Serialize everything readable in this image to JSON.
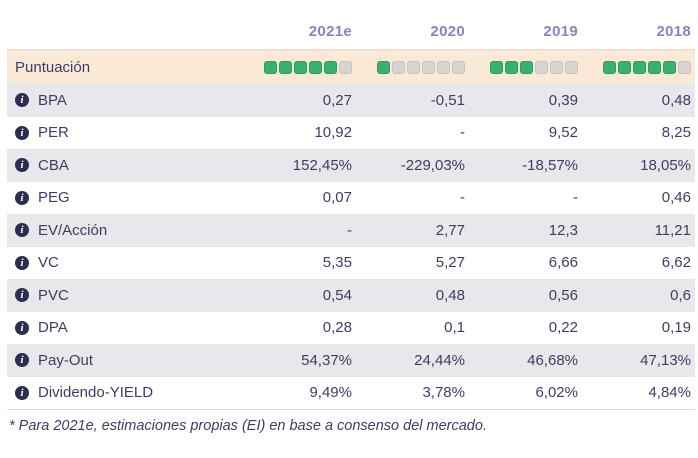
{
  "colors": {
    "year_header_text": "#8186c7",
    "body_text": "#3d3d66",
    "score_row_bg": "#fbe9d8",
    "stripe_row_bg": "#e8e7eb",
    "filled_square_green": "#35b170",
    "empty_square_gray": "#d8d4d1",
    "info_icon_bg": "#2d2d52",
    "divider_line": "#dcdce2"
  },
  "chart_data": {
    "type": "table",
    "columns": [
      "2021e",
      "2020",
      "2019",
      "2018"
    ],
    "score_row": {
      "label": "Puntuación",
      "max_squares": 6,
      "ratings": [
        5,
        1,
        3,
        5
      ]
    },
    "rows": [
      {
        "label": "BPA",
        "values": [
          "0,27",
          "-0,51",
          "0,39",
          "0,48"
        ]
      },
      {
        "label": "PER",
        "values": [
          "10,92",
          "-",
          "9,52",
          "8,25"
        ]
      },
      {
        "label": "CBA",
        "values": [
          "152,45%",
          "-229,03%",
          "-18,57%",
          "18,05%"
        ]
      },
      {
        "label": "PEG",
        "values": [
          "0,07",
          "-",
          "-",
          "0,46"
        ]
      },
      {
        "label": "EV/Acción",
        "values": [
          "-",
          "2,77",
          "12,3",
          "11,21"
        ]
      },
      {
        "label": "VC",
        "values": [
          "5,35",
          "5,27",
          "6,66",
          "6,62"
        ]
      },
      {
        "label": "PVC",
        "values": [
          "0,54",
          "0,48",
          "0,56",
          "0,6"
        ]
      },
      {
        "label": "DPA",
        "values": [
          "0,28",
          "0,1",
          "0,22",
          "0,19"
        ]
      },
      {
        "label": "Pay-Out",
        "values": [
          "54,37%",
          "24,44%",
          "46,68%",
          "47,13%"
        ]
      },
      {
        "label": "Dividendo-YIELD",
        "values": [
          "9,49%",
          "3,78%",
          "6,02%",
          "4,84%"
        ]
      }
    ],
    "footnote": "* Para 2021e, estimaciones propias (EI) en base a consenso del mercado.",
    "info_icon_glyph": "i"
  }
}
